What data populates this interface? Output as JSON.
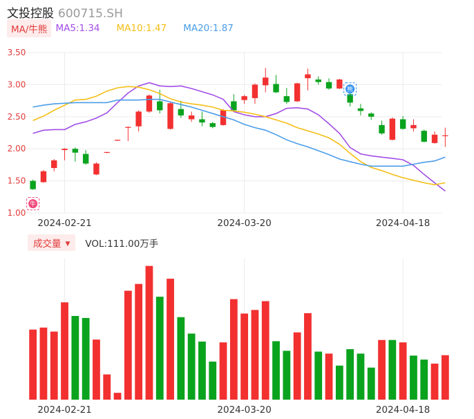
{
  "header": {
    "name": "文投控股",
    "code": "600715.SH"
  },
  "ma_legend": {
    "tag": "MA/牛熊",
    "ma5": "MA5:1.34",
    "ma10": "MA10:1.47",
    "ma20": "MA20:1.87"
  },
  "volume_legend": {
    "tag": "成交量",
    "value": "VOL:111.00万手"
  },
  "colors": {
    "up": "#f23030",
    "down": "#0aa31e",
    "ma5": "#a24ee6",
    "ma10": "#f5be16",
    "ma20": "#4a9de8",
    "signal_bull": "#f0457a",
    "signal_bear": "#2b8ef0"
  },
  "signals": [
    {
      "type": "bull",
      "label": "牛",
      "icon": "bull-icon",
      "index": 0
    },
    {
      "type": "bear",
      "label": "熊",
      "icon": "bear-icon",
      "index": 30
    }
  ],
  "chart_data": [
    {
      "type": "candlestick",
      "title": "",
      "ylim": [
        1.0,
        3.5
      ],
      "yticks": [
        "3.50",
        "3.00",
        "2.50",
        "2.00",
        "1.50",
        "1.00"
      ],
      "xticks": [
        {
          "label": "2024-02-21",
          "index": 3
        },
        {
          "label": "2024-03-20",
          "index": 20
        },
        {
          "label": "2024-04-18",
          "index": 35
        }
      ],
      "candles": [
        {
          "o": 1.5,
          "c": 1.37,
          "h": 1.52,
          "l": 1.36
        },
        {
          "o": 1.48,
          "c": 1.65,
          "h": 1.67,
          "l": 1.47
        },
        {
          "o": 1.7,
          "c": 1.82,
          "h": 1.84,
          "l": 1.65
        },
        {
          "o": 1.98,
          "c": 2.0,
          "h": 2.01,
          "l": 1.82
        },
        {
          "o": 2.0,
          "c": 1.94,
          "h": 2.02,
          "l": 1.8
        },
        {
          "o": 1.92,
          "c": 1.77,
          "h": 1.98,
          "l": 1.75
        },
        {
          "o": 1.6,
          "c": 1.77,
          "h": 1.79,
          "l": 1.59
        },
        {
          "o": 1.94,
          "c": 1.95,
          "h": 1.95,
          "l": 1.93
        },
        {
          "o": 2.13,
          "c": 2.14,
          "h": 2.14,
          "l": 2.12
        },
        {
          "o": 2.33,
          "c": 2.34,
          "h": 2.35,
          "l": 2.12
        },
        {
          "o": 2.35,
          "c": 2.58,
          "h": 2.6,
          "l": 2.27
        },
        {
          "o": 2.58,
          "c": 2.83,
          "h": 2.85,
          "l": 2.56
        },
        {
          "o": 2.74,
          "c": 2.6,
          "h": 2.92,
          "l": 2.55
        },
        {
          "o": 2.31,
          "c": 2.71,
          "h": 2.73,
          "l": 2.3
        },
        {
          "o": 2.62,
          "c": 2.52,
          "h": 2.75,
          "l": 2.48
        },
        {
          "o": 2.46,
          "c": 2.52,
          "h": 2.58,
          "l": 2.42
        },
        {
          "o": 2.46,
          "c": 2.41,
          "h": 2.58,
          "l": 2.35
        },
        {
          "o": 2.4,
          "c": 2.34,
          "h": 2.42,
          "l": 2.32
        },
        {
          "o": 2.37,
          "c": 2.6,
          "h": 2.62,
          "l": 2.36
        },
        {
          "o": 2.74,
          "c": 2.6,
          "h": 2.85,
          "l": 2.57
        },
        {
          "o": 2.76,
          "c": 2.82,
          "h": 2.84,
          "l": 2.7
        },
        {
          "o": 2.79,
          "c": 3.0,
          "h": 3.02,
          "l": 2.7
        },
        {
          "o": 2.99,
          "c": 3.11,
          "h": 3.26,
          "l": 2.88
        },
        {
          "o": 3.01,
          "c": 2.88,
          "h": 3.15,
          "l": 2.87
        },
        {
          "o": 2.82,
          "c": 2.73,
          "h": 2.95,
          "l": 2.7
        },
        {
          "o": 2.74,
          "c": 3.02,
          "h": 3.03,
          "l": 2.73
        },
        {
          "o": 3.1,
          "c": 3.16,
          "h": 3.25,
          "l": 2.91
        },
        {
          "o": 3.08,
          "c": 3.04,
          "h": 3.13,
          "l": 3.0
        },
        {
          "o": 3.04,
          "c": 2.94,
          "h": 3.1,
          "l": 2.92
        },
        {
          "o": 2.94,
          "c": 3.08,
          "h": 3.09,
          "l": 2.93
        },
        {
          "o": 2.85,
          "c": 2.72,
          "h": 2.91,
          "l": 2.66
        },
        {
          "o": 2.63,
          "c": 2.59,
          "h": 2.7,
          "l": 2.52
        },
        {
          "o": 2.55,
          "c": 2.5,
          "h": 2.57,
          "l": 2.45
        },
        {
          "o": 2.37,
          "c": 2.24,
          "h": 2.44,
          "l": 2.22
        },
        {
          "o": 2.14,
          "c": 2.47,
          "h": 2.49,
          "l": 2.13
        },
        {
          "o": 2.46,
          "c": 2.31,
          "h": 2.51,
          "l": 2.3
        },
        {
          "o": 2.32,
          "c": 2.37,
          "h": 2.46,
          "l": 2.27
        },
        {
          "o": 2.28,
          "c": 2.11,
          "h": 2.3,
          "l": 2.1
        },
        {
          "o": 2.09,
          "c": 2.22,
          "h": 2.27,
          "l": 2.08
        },
        {
          "o": 2.2,
          "c": 2.21,
          "h": 2.33,
          "l": 2.03
        }
      ],
      "ma5": [
        2.24,
        2.29,
        2.3,
        2.3,
        2.38,
        2.42,
        2.48,
        2.56,
        2.72,
        2.87,
        2.98,
        3.03,
        2.98,
        2.97,
        2.98,
        2.94,
        2.89,
        2.84,
        2.77,
        2.58,
        2.53,
        2.5,
        2.5,
        2.55,
        2.63,
        2.64,
        2.62,
        2.53,
        2.39,
        2.24,
        2.02,
        1.92,
        1.89,
        1.87,
        1.85,
        1.83,
        1.74,
        1.6,
        1.47,
        1.34
      ],
      "ma10": [
        2.44,
        2.51,
        2.6,
        2.68,
        2.76,
        2.77,
        2.82,
        2.9,
        2.95,
        2.97,
        2.96,
        2.92,
        2.86,
        2.78,
        2.73,
        2.7,
        2.68,
        2.65,
        2.6,
        2.59,
        2.57,
        2.54,
        2.5,
        2.45,
        2.4,
        2.33,
        2.28,
        2.23,
        2.17,
        2.07,
        1.93,
        1.8,
        1.71,
        1.66,
        1.6,
        1.55,
        1.51,
        1.47,
        1.44,
        1.47
      ],
      "ma20": [
        2.65,
        2.68,
        2.7,
        2.71,
        2.72,
        2.72,
        2.72,
        2.72,
        2.76,
        2.76,
        2.76,
        2.77,
        2.77,
        2.73,
        2.69,
        2.65,
        2.6,
        2.55,
        2.5,
        2.45,
        2.38,
        2.33,
        2.29,
        2.22,
        2.14,
        2.08,
        2.03,
        1.97,
        1.91,
        1.84,
        1.8,
        1.76,
        1.73,
        1.73,
        1.73,
        1.73,
        1.76,
        1.79,
        1.81,
        1.87
      ]
    },
    {
      "type": "bar",
      "title": "成交量",
      "unit": "万手",
      "current": 111.0,
      "ylim": [
        0,
        335
      ],
      "directions": [
        "up",
        "up",
        "up",
        "up",
        "down",
        "down",
        "up",
        "up",
        "up",
        "up",
        "up",
        "up",
        "down",
        "up",
        "down",
        "down",
        "down",
        "down",
        "up",
        "up",
        "up",
        "up",
        "up",
        "down",
        "down",
        "up",
        "up",
        "down",
        "up",
        "down",
        "down",
        "down",
        "down",
        "up",
        "down",
        "up",
        "down",
        "down",
        "up",
        "up"
      ],
      "values": [
        175,
        180,
        170,
        243,
        209,
        204,
        150,
        63,
        17,
        272,
        289,
        334,
        257,
        302,
        206,
        165,
        145,
        95,
        143,
        251,
        215,
        224,
        246,
        146,
        122,
        168,
        216,
        120,
        115,
        85,
        126,
        115,
        80,
        149,
        149,
        143,
        110,
        100,
        90,
        111
      ]
    }
  ]
}
